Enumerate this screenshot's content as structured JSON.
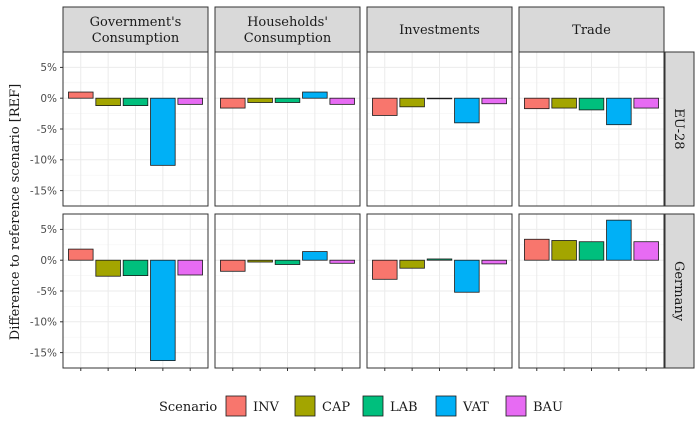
{
  "chart_data": {
    "type": "bar",
    "ylabel": "Difference to reference scenario [REF]",
    "ylim": [
      -17.5,
      7.5
    ],
    "yticks": [
      5,
      0,
      -5,
      -10,
      -15
    ],
    "ytick_labels": [
      "5%",
      "0%",
      "-5%",
      "-10%",
      "-15%"
    ],
    "grid": true,
    "col_facets": [
      "Government's\nConsumption",
      "Households'\nConsumption",
      "Investments",
      "Trade"
    ],
    "row_facets": [
      "EU-28",
      "Germany"
    ],
    "categories": [
      "INV",
      "CAP",
      "LAB",
      "VAT",
      "BAU"
    ],
    "colors": [
      "#F8766D",
      "#A3A500",
      "#00BF7D",
      "#00B0F6",
      "#E76BF3"
    ],
    "legend": {
      "title": "Scenario",
      "position": "bottom",
      "labels": [
        "INV",
        "CAP",
        "LAB",
        "VAT",
        "BAU"
      ]
    },
    "panels": [
      {
        "row": "EU-28",
        "col": "Government's\nConsumption",
        "values": [
          1.0,
          -1.2,
          -1.2,
          -10.9,
          -1.0
        ]
      },
      {
        "row": "EU-28",
        "col": "Households'\nConsumption",
        "values": [
          -1.6,
          -0.7,
          -0.7,
          1.0,
          -1.0
        ]
      },
      {
        "row": "EU-28",
        "col": "Investments",
        "values": [
          -2.8,
          -1.4,
          -0.1,
          -4.0,
          -0.9
        ]
      },
      {
        "row": "EU-28",
        "col": "Trade",
        "values": [
          -1.7,
          -1.6,
          -1.9,
          -4.3,
          -1.6
        ]
      },
      {
        "row": "Germany",
        "col": "Government's\nConsumption",
        "values": [
          1.8,
          -2.6,
          -2.5,
          -16.3,
          -2.4
        ]
      },
      {
        "row": "Germany",
        "col": "Households'\nConsumption",
        "values": [
          -1.8,
          -0.3,
          -0.7,
          1.4,
          -0.5
        ]
      },
      {
        "row": "Germany",
        "col": "Investments",
        "values": [
          -3.1,
          -1.3,
          0.2,
          -5.2,
          -0.6
        ]
      },
      {
        "row": "Germany",
        "col": "Trade",
        "values": [
          3.4,
          3.2,
          3.0,
          6.5,
          3.0
        ]
      }
    ]
  }
}
